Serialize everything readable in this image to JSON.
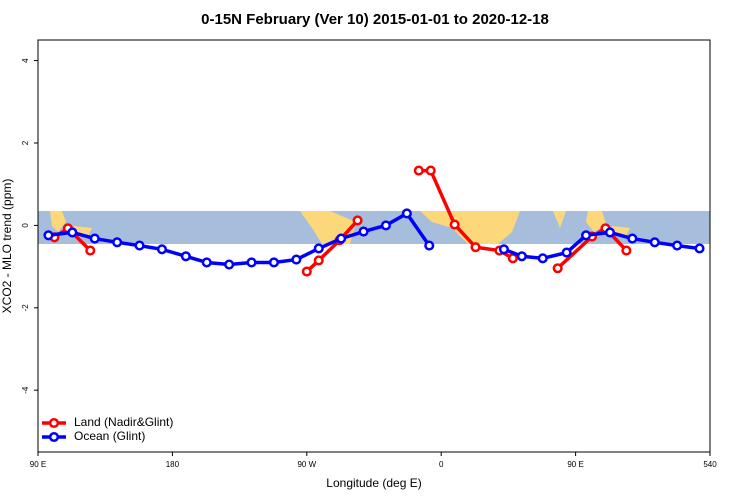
{
  "chart_data": {
    "type": "line",
    "title": "0-15N February (Ver 10)   2015-01-01 to 2020-12-18",
    "x_label": "Longitude (deg E)",
    "y_label": "XCO2 - MLO trend (ppm)",
    "xlim": [
      90,
      540
    ],
    "ylim": [
      -5.5,
      4.5
    ],
    "xticks": [
      {
        "value": 90,
        "label": "90 E"
      },
      180,
      {
        "value": 270,
        "label": "90 W"
      },
      {
        "value": 360,
        "label": "0"
      },
      {
        "value": 450,
        "label": "90 E"
      },
      540
    ],
    "yticks": [
      -4,
      -2,
      0,
      2,
      4
    ],
    "legend": "bottom-left",
    "series": [
      {
        "name": "Land (Nadir&Glint)",
        "color": "#ff0000",
        "x": [
          101,
          110,
          125,
          null,
          270,
          278,
          292,
          304,
          null,
          345,
          353,
          369,
          383,
          399,
          408,
          null,
          438,
          461,
          470,
          484
        ],
        "values": [
          -0.29,
          -0.07,
          -0.61,
          null,
          -1.12,
          -0.85,
          -0.36,
          0.12,
          null,
          1.33,
          1.33,
          0.02,
          -0.53,
          -0.61,
          -0.8,
          null,
          -1.04,
          -0.27,
          -0.07,
          -0.61
        ]
      },
      {
        "name": "Ocean (Glint)",
        "color": "#0000ff",
        "x": [
          97,
          113,
          128,
          143,
          158,
          173,
          189,
          203,
          218,
          233,
          248,
          263,
          278,
          293,
          308,
          323,
          337,
          352,
          null,
          402,
          414,
          428,
          444,
          457,
          473,
          488,
          503,
          518,
          533
        ],
        "values": [
          -0.24,
          -0.17,
          -0.32,
          -0.41,
          -0.49,
          -0.58,
          -0.75,
          -0.9,
          -0.95,
          -0.9,
          -0.9,
          -0.83,
          -0.56,
          -0.32,
          -0.15,
          0,
          0.29,
          -0.49,
          null,
          -0.58,
          -0.75,
          -0.8,
          -0.66,
          -0.24,
          -0.17,
          -0.32,
          -0.41,
          -0.49,
          -0.56
        ]
      }
    ]
  }
}
